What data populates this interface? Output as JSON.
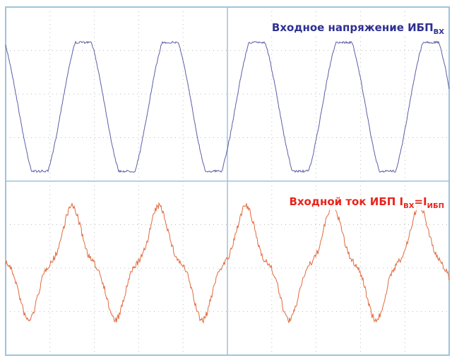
{
  "labels": {
    "voltage": {
      "text": "Входное напряжение ИБП",
      "sub": "ВХ"
    },
    "current": {
      "text": "Входной ток ИБП I",
      "sub1": "ВХ",
      "mid": "=I",
      "sub2": "ИБП"
    }
  }
}
